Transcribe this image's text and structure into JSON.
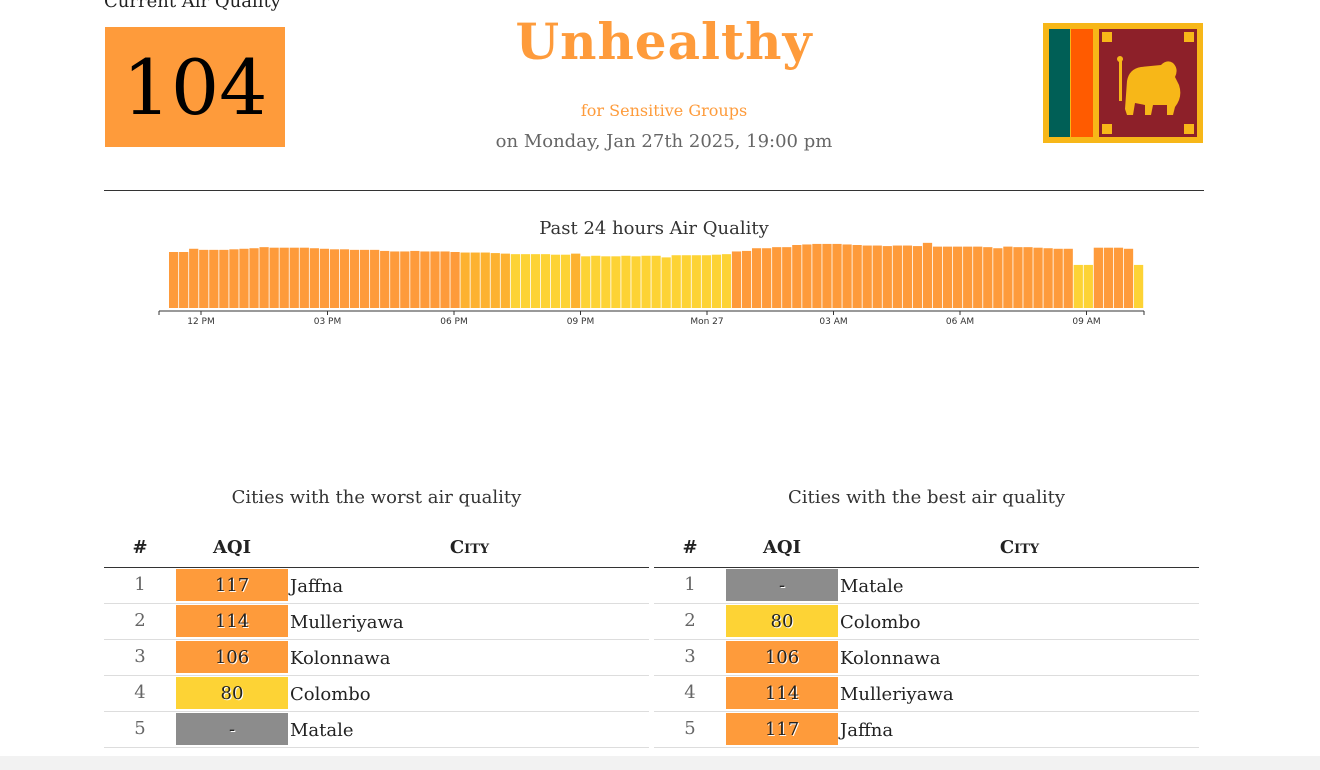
{
  "current": {
    "label": "Current Air Quality",
    "aqi": "104",
    "status": "Unhealthy",
    "status_sub": "for Sensitive Groups",
    "date": "on Monday, Jan 27th 2025, 19:00 pm",
    "color": "#fe9b3b"
  },
  "flag": {
    "country": "Sri Lanka",
    "icon": "sri-lanka-flag-icon"
  },
  "chart_data": {
    "type": "bar",
    "title": "Past 24 hours Air Quality",
    "x_ticks": [
      "12 PM",
      "03 PM",
      "06 PM",
      "09 PM",
      "Mon 27",
      "03 AM",
      "06 AM",
      "09 AM"
    ],
    "values": [
      104,
      104,
      110,
      108,
      108,
      108,
      109,
      110,
      111,
      113,
      112,
      112,
      112,
      112,
      111,
      110,
      109,
      109,
      108,
      108,
      108,
      106,
      105,
      105,
      106,
      105,
      105,
      105,
      104,
      103,
      103,
      103,
      102,
      101,
      100,
      100,
      100,
      100,
      99,
      99,
      101,
      96,
      97,
      96,
      96,
      97,
      96,
      97,
      97,
      94,
      98,
      98,
      98,
      98,
      99,
      100,
      105,
      106,
      111,
      111,
      113,
      113,
      117,
      118,
      119,
      119,
      119,
      118,
      117,
      116,
      116,
      115,
      116,
      116,
      115,
      121,
      114,
      114,
      114,
      114,
      114,
      113,
      111,
      114,
      113,
      113,
      112,
      111,
      110,
      110,
      80,
      80,
      112,
      112,
      112,
      110,
      80
    ],
    "colors": {
      "orange": "#fe9b3b",
      "light_orange": "#fdb230",
      "yellow": "#fdd335"
    },
    "ylim": [
      0,
      130
    ]
  },
  "worst": {
    "title": "Cities with the worst air quality",
    "headers": {
      "rank": "#",
      "aqi": "AQI",
      "city": "City"
    },
    "rows": [
      {
        "rank": "1",
        "aqi": "117",
        "city": "Jaffna",
        "color": "#fe9b3b"
      },
      {
        "rank": "2",
        "aqi": "114",
        "city": "Mulleriyawa",
        "color": "#fe9b3b"
      },
      {
        "rank": "3",
        "aqi": "106",
        "city": "Kolonnawa",
        "color": "#fe9b3b"
      },
      {
        "rank": "4",
        "aqi": "80",
        "city": "Colombo",
        "color": "#fdd335"
      },
      {
        "rank": "5",
        "aqi": "-",
        "city": "Matale",
        "color": "#8c8c8c"
      }
    ]
  },
  "best": {
    "title": "Cities with the best air quality",
    "headers": {
      "rank": "#",
      "aqi": "AQI",
      "city": "City"
    },
    "rows": [
      {
        "rank": "1",
        "aqi": "-",
        "city": "Matale",
        "color": "#8c8c8c"
      },
      {
        "rank": "2",
        "aqi": "80",
        "city": "Colombo",
        "color": "#fdd335"
      },
      {
        "rank": "3",
        "aqi": "106",
        "city": "Kolonnawa",
        "color": "#fe9b3b"
      },
      {
        "rank": "4",
        "aqi": "114",
        "city": "Mulleriyawa",
        "color": "#fe9b3b"
      },
      {
        "rank": "5",
        "aqi": "117",
        "city": "Jaffna",
        "color": "#fe9b3b"
      }
    ]
  }
}
